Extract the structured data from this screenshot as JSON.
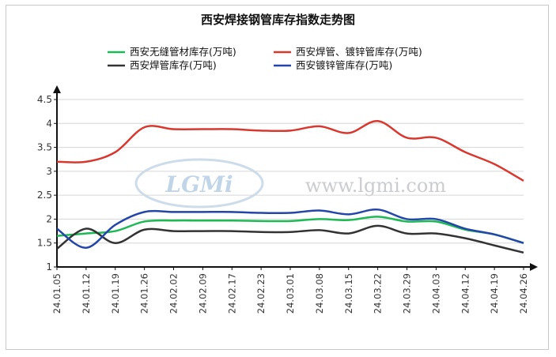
{
  "chart_data": {
    "type": "line",
    "title": "西安焊接钢管库存指数走势图",
    "categories": [
      "24.01.05",
      "24.01.12",
      "24.01.19",
      "24.01.26",
      "24.02.02",
      "24.02.09",
      "24.02.17",
      "24.02.23",
      "24.03.01",
      "24.03.08",
      "24.03.15",
      "24.03.22",
      "24.03.29",
      "24.04.03",
      "24.04.12",
      "24.04.19",
      "24.04.26"
    ],
    "ylim": [
      1,
      4.5
    ],
    "yticks": [
      "1",
      "1.5",
      "2",
      "2.5",
      "3",
      "3.5",
      "4",
      "4.5"
    ],
    "grid": true,
    "legend_position": "top",
    "series": [
      {
        "name": "西安无缝管材库存(万吨)",
        "color": "#1db954",
        "values": [
          1.65,
          1.7,
          1.75,
          1.95,
          1.97,
          1.97,
          1.97,
          1.96,
          1.96,
          2.0,
          1.98,
          2.05,
          1.95,
          1.95,
          1.78,
          1.68,
          1.5
        ]
      },
      {
        "name": "西安焊管、镀锌管库存(万吨)",
        "color": "#d9382f",
        "values": [
          3.2,
          3.2,
          3.4,
          3.92,
          3.88,
          3.88,
          3.88,
          3.85,
          3.85,
          3.94,
          3.8,
          4.05,
          3.7,
          3.7,
          3.4,
          3.15,
          2.8
        ]
      },
      {
        "name": "西安焊管库存(万吨)",
        "color": "#333333",
        "values": [
          1.38,
          1.8,
          1.5,
          1.78,
          1.75,
          1.75,
          1.75,
          1.73,
          1.73,
          1.77,
          1.7,
          1.86,
          1.7,
          1.7,
          1.6,
          1.45,
          1.3
        ]
      },
      {
        "name": "西安镀锌管库存(万吨)",
        "color": "#2346a8",
        "values": [
          1.8,
          1.4,
          1.88,
          2.15,
          2.15,
          2.15,
          2.15,
          2.13,
          2.13,
          2.18,
          2.1,
          2.2,
          2.0,
          2.0,
          1.8,
          1.68,
          1.5
        ]
      }
    ]
  },
  "watermark": {
    "logo": "LGMi",
    "url": "www.lgmi.com"
  }
}
